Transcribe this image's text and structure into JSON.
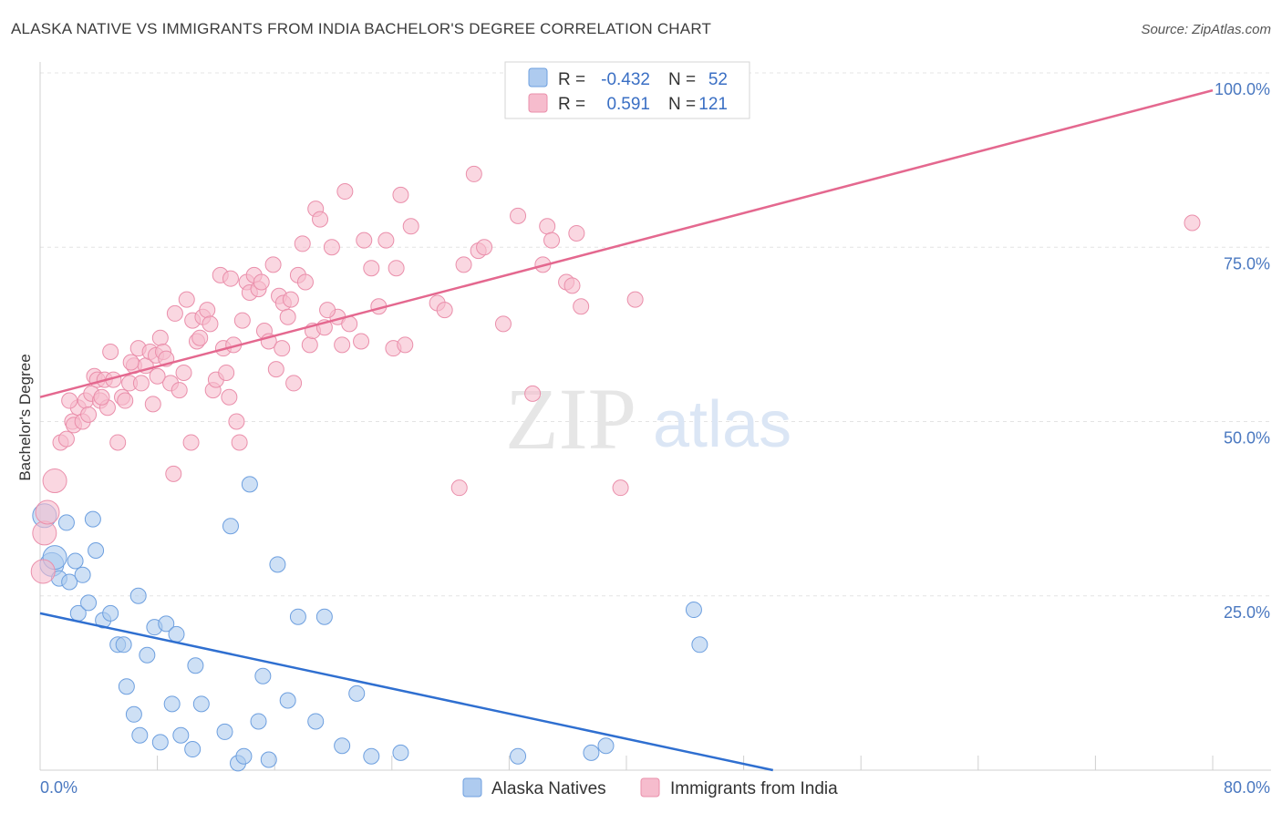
{
  "title": "ALASKA NATIVE VS IMMIGRANTS FROM INDIA BACHELOR'S DEGREE CORRELATION CHART",
  "source": "Source: ZipAtlas.com",
  "watermark": {
    "zip": "ZIP",
    "atlas": "atlas"
  },
  "colors": {
    "blue_fill": "#aecbef",
    "blue_stroke": "#6d9fdf",
    "blue_line": "#2f6fd0",
    "pink_fill": "#f6bccd",
    "pink_stroke": "#ea8fab",
    "pink_line": "#e4688f",
    "tick_text": "#4a78c0"
  },
  "chart_data": {
    "type": "scatter",
    "ylabel": "Bachelor's Degree",
    "xlim": [
      0,
      80
    ],
    "ylim": [
      0,
      100
    ],
    "x_tick_labels": [
      {
        "value": 0,
        "label": "0.0%"
      },
      {
        "value": 80,
        "label": "80.0%"
      }
    ],
    "y_tick_labels": [
      {
        "value": 25,
        "label": "25.0%"
      },
      {
        "value": 50,
        "label": "50.0%"
      },
      {
        "value": 75,
        "label": "75.0%"
      },
      {
        "value": 100,
        "label": "100.0%"
      }
    ],
    "grid": true,
    "legend_position": "top-center",
    "stats": [
      {
        "series": "Alaska Natives",
        "r_label": "R =",
        "r": "-0.432",
        "n_label": "N =",
        "n": "52"
      },
      {
        "series": "Immigrants from India",
        "r_label": "R =",
        "r": "0.591",
        "n_label": "N =",
        "n": "121"
      }
    ],
    "series": [
      {
        "name": "Alaska Natives",
        "color": "#6d9fdf",
        "trendline": {
          "x": [
            0,
            50
          ],
          "y": [
            22.5,
            0
          ]
        },
        "points": [
          [
            0.3,
            36.5
          ],
          [
            0.8,
            29.5
          ],
          [
            1.0,
            30.5
          ],
          [
            1.3,
            27.5
          ],
          [
            1.8,
            35.5
          ],
          [
            2.0,
            27.0
          ],
          [
            2.4,
            30.0
          ],
          [
            2.6,
            22.5
          ],
          [
            2.9,
            28.0
          ],
          [
            3.3,
            24.0
          ],
          [
            3.6,
            36.0
          ],
          [
            3.8,
            31.5
          ],
          [
            4.3,
            21.5
          ],
          [
            4.8,
            22.5
          ],
          [
            5.3,
            18.0
          ],
          [
            5.7,
            18.0
          ],
          [
            5.9,
            12.0
          ],
          [
            6.4,
            8.0
          ],
          [
            6.8,
            5.0
          ],
          [
            6.7,
            25.0
          ],
          [
            7.3,
            16.5
          ],
          [
            7.8,
            20.5
          ],
          [
            8.2,
            4.0
          ],
          [
            8.6,
            21.0
          ],
          [
            9.0,
            9.5
          ],
          [
            9.3,
            19.5
          ],
          [
            9.6,
            5.0
          ],
          [
            10.4,
            3.0
          ],
          [
            10.6,
            15.0
          ],
          [
            11.0,
            9.5
          ],
          [
            12.6,
            5.5
          ],
          [
            13.0,
            35.0
          ],
          [
            13.5,
            1.0
          ],
          [
            13.9,
            2.0
          ],
          [
            14.3,
            41.0
          ],
          [
            14.9,
            7.0
          ],
          [
            15.2,
            13.5
          ],
          [
            15.6,
            1.5
          ],
          [
            16.2,
            29.5
          ],
          [
            16.9,
            10.0
          ],
          [
            17.6,
            22.0
          ],
          [
            18.8,
            7.0
          ],
          [
            19.4,
            22.0
          ],
          [
            20.6,
            3.5
          ],
          [
            21.6,
            11.0
          ],
          [
            22.6,
            2.0
          ],
          [
            24.6,
            2.5
          ],
          [
            32.6,
            2.0
          ],
          [
            37.6,
            2.5
          ],
          [
            38.6,
            3.5
          ],
          [
            44.6,
            23.0
          ],
          [
            45.0,
            18.0
          ]
        ]
      },
      {
        "name": "Immigrants from India",
        "color": "#ea8fab",
        "trendline": {
          "x": [
            0,
            80
          ],
          "y": [
            53.5,
            97.5
          ]
        },
        "points": [
          [
            0.2,
            28.5
          ],
          [
            0.3,
            34.0
          ],
          [
            0.5,
            37.0
          ],
          [
            1.0,
            41.5
          ],
          [
            1.4,
            47.0
          ],
          [
            1.8,
            47.5
          ],
          [
            2.2,
            50.0
          ],
          [
            2.3,
            49.5
          ],
          [
            2.6,
            52.0
          ],
          [
            2.9,
            50.0
          ],
          [
            3.1,
            53.0
          ],
          [
            3.3,
            51.0
          ],
          [
            3.5,
            54.0
          ],
          [
            3.7,
            56.5
          ],
          [
            3.9,
            56.0
          ],
          [
            4.1,
            53.0
          ],
          [
            4.4,
            56.0
          ],
          [
            4.6,
            52.0
          ],
          [
            4.8,
            60.0
          ],
          [
            5.0,
            56.0
          ],
          [
            5.3,
            47.0
          ],
          [
            5.6,
            53.5
          ],
          [
            5.8,
            53.0
          ],
          [
            6.1,
            55.5
          ],
          [
            6.4,
            58.0
          ],
          [
            6.7,
            60.5
          ],
          [
            6.9,
            55.5
          ],
          [
            7.2,
            58.0
          ],
          [
            7.5,
            60.0
          ],
          [
            7.7,
            52.5
          ],
          [
            7.9,
            59.5
          ],
          [
            8.2,
            62.0
          ],
          [
            8.4,
            60.0
          ],
          [
            8.6,
            59.0
          ],
          [
            8.9,
            55.5
          ],
          [
            9.2,
            65.5
          ],
          [
            9.5,
            54.5
          ],
          [
            9.8,
            57.0
          ],
          [
            10.0,
            67.5
          ],
          [
            10.4,
            64.5
          ],
          [
            10.7,
            61.5
          ],
          [
            10.9,
            62.0
          ],
          [
            11.1,
            65.0
          ],
          [
            11.4,
            66.0
          ],
          [
            11.6,
            64.0
          ],
          [
            11.8,
            54.5
          ],
          [
            12.0,
            56.0
          ],
          [
            12.3,
            71.0
          ],
          [
            12.5,
            60.5
          ],
          [
            12.7,
            57.0
          ],
          [
            13.0,
            70.5
          ],
          [
            13.2,
            61.0
          ],
          [
            13.4,
            50.0
          ],
          [
            13.6,
            47.0
          ],
          [
            13.8,
            64.5
          ],
          [
            14.1,
            70.0
          ],
          [
            14.3,
            68.5
          ],
          [
            14.6,
            71.0
          ],
          [
            14.9,
            69.0
          ],
          [
            15.1,
            70.0
          ],
          [
            15.3,
            63.0
          ],
          [
            15.6,
            61.5
          ],
          [
            15.9,
            72.5
          ],
          [
            16.1,
            57.5
          ],
          [
            16.3,
            68.0
          ],
          [
            16.6,
            67.0
          ],
          [
            16.9,
            65.0
          ],
          [
            17.1,
            67.5
          ],
          [
            17.3,
            55.5
          ],
          [
            17.6,
            71.0
          ],
          [
            17.9,
            75.5
          ],
          [
            18.1,
            70.0
          ],
          [
            18.4,
            61.0
          ],
          [
            18.6,
            63.0
          ],
          [
            18.8,
            80.5
          ],
          [
            19.1,
            79.0
          ],
          [
            19.4,
            63.5
          ],
          [
            19.9,
            75.0
          ],
          [
            20.3,
            65.0
          ],
          [
            20.6,
            61.0
          ],
          [
            20.8,
            83.0
          ],
          [
            21.1,
            64.0
          ],
          [
            21.9,
            61.5
          ],
          [
            22.1,
            76.0
          ],
          [
            22.6,
            72.0
          ],
          [
            23.1,
            66.5
          ],
          [
            23.6,
            76.0
          ],
          [
            24.1,
            60.5
          ],
          [
            24.3,
            72.0
          ],
          [
            24.6,
            82.5
          ],
          [
            24.9,
            61.0
          ],
          [
            25.3,
            78.0
          ],
          [
            27.1,
            67.0
          ],
          [
            27.6,
            66.0
          ],
          [
            28.6,
            40.5
          ],
          [
            28.9,
            72.5
          ],
          [
            29.6,
            85.5
          ],
          [
            29.9,
            74.5
          ],
          [
            30.3,
            75.0
          ],
          [
            31.6,
            64.0
          ],
          [
            32.6,
            79.5
          ],
          [
            33.6,
            54.0
          ],
          [
            34.3,
            72.5
          ],
          [
            34.6,
            78.0
          ],
          [
            34.9,
            76.0
          ],
          [
            35.9,
            70.0
          ],
          [
            36.3,
            69.5
          ],
          [
            36.6,
            77.0
          ],
          [
            36.9,
            66.5
          ],
          [
            39.6,
            40.5
          ],
          [
            40.6,
            67.5
          ],
          [
            78.6,
            78.5
          ],
          [
            9.1,
            42.5
          ],
          [
            10.3,
            47.0
          ],
          [
            6.2,
            58.5
          ],
          [
            12.9,
            53.5
          ],
          [
            4.2,
            53.5
          ],
          [
            2.0,
            53.0
          ],
          [
            8.0,
            56.5
          ],
          [
            16.5,
            60.5
          ],
          [
            19.6,
            66.0
          ]
        ]
      }
    ]
  }
}
